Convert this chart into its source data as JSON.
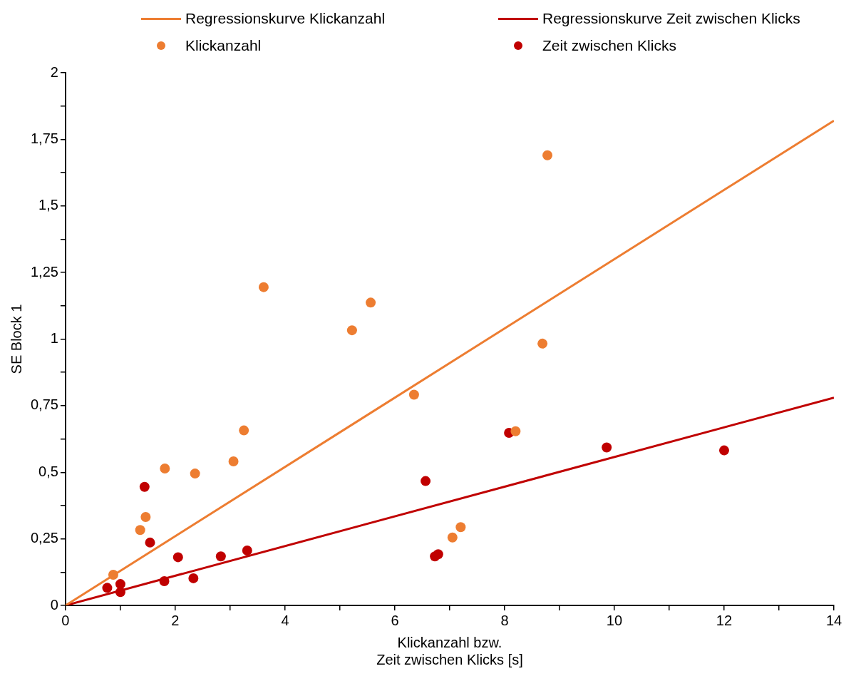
{
  "chart_data": {
    "type": "scatter",
    "xlabel": "Klickanzahl bzw.\nZeit zwischen Klicks [s]",
    "ylabel": "SE Block 1",
    "xlim": [
      0,
      14
    ],
    "ylim": [
      0,
      2
    ],
    "xticks": [
      0,
      {
        "value": 1,
        "label": null
      },
      2,
      {
        "value": 3,
        "label": null
      },
      4,
      {
        "value": 5,
        "label": null
      },
      6,
      {
        "value": 7,
        "label": null
      },
      8,
      {
        "value": 9,
        "label": null
      },
      10,
      {
        "value": 11,
        "label": null
      },
      12,
      {
        "value": 13,
        "label": null
      },
      14
    ],
    "yticks": [
      0,
      {
        "value": 0.125,
        "label": null
      },
      {
        "value": 0.25,
        "label": "0,25"
      },
      {
        "value": 0.375,
        "label": null
      },
      {
        "value": 0.5,
        "label": "0,5"
      },
      {
        "value": 0.625,
        "label": null
      },
      {
        "value": 0.75,
        "label": "0,75"
      },
      {
        "value": 0.875,
        "label": null
      },
      1,
      {
        "value": 1.125,
        "label": null
      },
      {
        "value": 1.25,
        "label": "1,25"
      },
      {
        "value": 1.375,
        "label": null
      },
      {
        "value": 1.5,
        "label": "1,5"
      },
      {
        "value": 1.625,
        "label": null
      },
      {
        "value": 1.75,
        "label": "1,75"
      },
      {
        "value": 1.875,
        "label": null
      },
      2
    ],
    "grid": false,
    "legend": "top",
    "line_style": "solid",
    "series": [
      {
        "name": "Regressionskurve Klickanzahl",
        "type": "line",
        "marker": "none",
        "color": "#ed7d31",
        "x": [
          0,
          14
        ],
        "values": [
          0,
          1.82
        ]
      },
      {
        "name": "Regressionskurve Zeit zwischen Klicks",
        "type": "line",
        "marker": "none",
        "color": "#c00000",
        "x": [
          0,
          14
        ],
        "values": [
          0,
          0.78
        ]
      },
      {
        "name": "Klickanzahl",
        "type": "scatter",
        "marker": "circle",
        "color": "#ed7d31",
        "x": [
          0.87,
          1.36,
          1.46,
          1.81,
          2.36,
          3.06,
          3.25,
          3.61,
          5.22,
          5.56,
          6.35,
          7.05,
          7.2,
          8.2,
          8.69,
          8.78
        ],
        "values": [
          0.115,
          0.283,
          0.332,
          0.514,
          0.495,
          0.541,
          0.657,
          1.195,
          1.033,
          1.137,
          0.791,
          0.255,
          0.294,
          0.654,
          0.983,
          1.69
        ]
      },
      {
        "name": "Zeit zwischen Klicks",
        "type": "scatter",
        "marker": "circle",
        "color": "#c00000",
        "x": [
          0.76,
          1.0,
          1.0,
          1.44,
          1.54,
          1.8,
          2.05,
          2.33,
          2.83,
          3.31,
          6.56,
          6.73,
          6.79,
          8.08,
          9.86,
          12.0
        ],
        "values": [
          0.066,
          0.08,
          0.05,
          0.445,
          0.236,
          0.091,
          0.181,
          0.102,
          0.184,
          0.206,
          0.467,
          0.184,
          0.192,
          0.648,
          0.593,
          0.582
        ]
      }
    ]
  }
}
